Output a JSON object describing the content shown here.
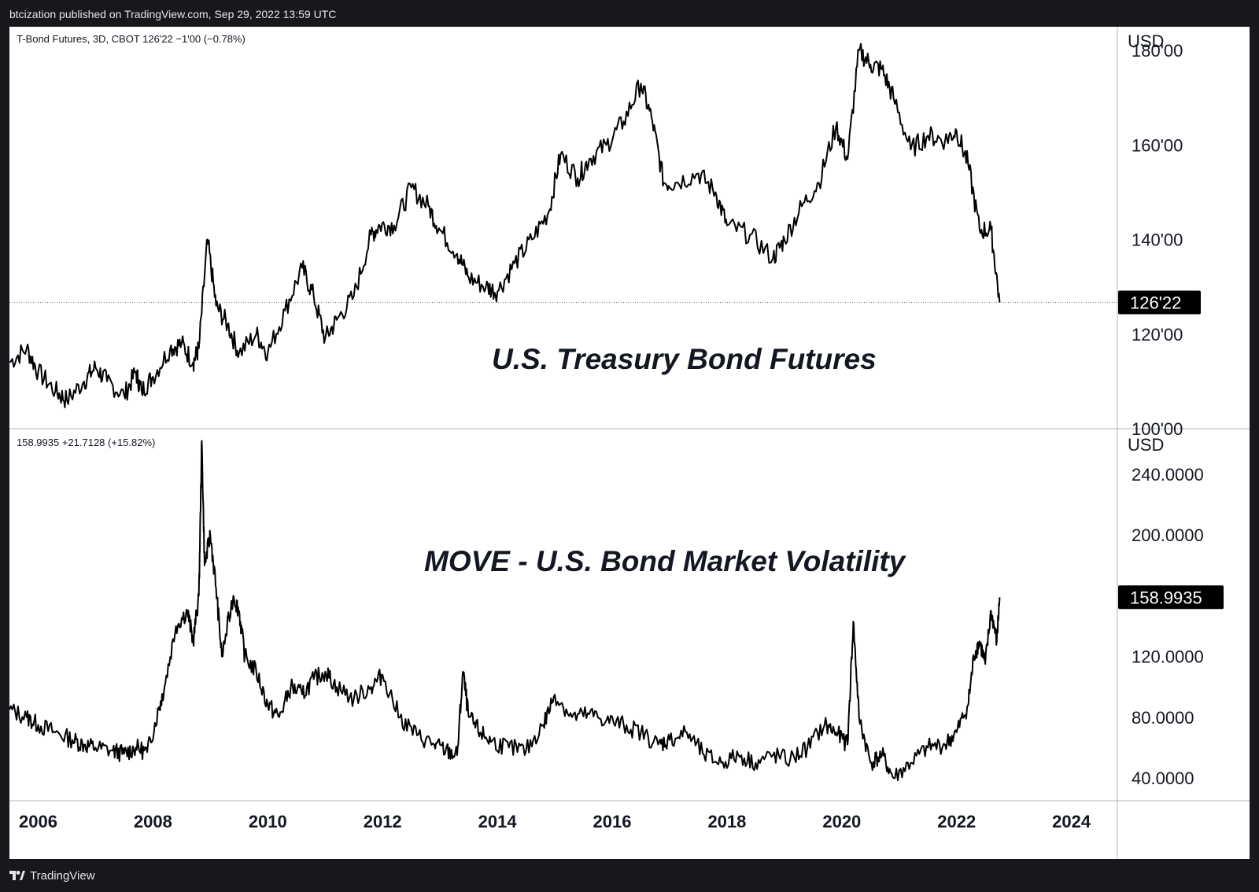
{
  "header": {
    "publisher": "btcization published on TradingView.com, Sep 29, 2022 13:59 UTC"
  },
  "footer": {
    "brand": "TradingView"
  },
  "top_pane": {
    "legend": "T-Bond Futures, 3D, CBOT  126'22  −1'00 (−0.78%)",
    "currency": "USD",
    "yticks": [
      "180'00",
      "160'00",
      "140'00",
      "120'00",
      "100'00"
    ],
    "price_badge": "126'22",
    "annotation": "U.S. Treasury Bond Futures"
  },
  "bottom_pane": {
    "legend": "158.9935  +21.7128 (+15.82%)",
    "currency": "USD",
    "yticks": [
      "240.0000",
      "200.0000",
      "120.0000",
      "80.0000",
      "40.0000"
    ],
    "price_badge": "158.9935",
    "annotation": "MOVE - U.S. Bond Market Volatility"
  },
  "time_axis": [
    "2006",
    "2008",
    "2010",
    "2012",
    "2014",
    "2016",
    "2018",
    "2020",
    "2022",
    "2024"
  ],
  "colors": {
    "line": "#000000",
    "background": "#ffffff",
    "frame": "#17181c",
    "badge": "#000000"
  },
  "chart_data": [
    {
      "type": "line",
      "title": "T-Bond Futures, 3D, CBOT",
      "ylabel": "USD",
      "ylim": [
        100,
        185
      ],
      "xlim": [
        2005.5,
        2024.8
      ],
      "last_value": 126.69,
      "x": [
        2005.5,
        2005.8,
        2006.0,
        2006.3,
        2006.5,
        2006.8,
        2007.0,
        2007.2,
        2007.5,
        2007.7,
        2007.8,
        2008.0,
        2008.3,
        2008.5,
        2008.7,
        2008.8,
        2008.95,
        2009.1,
        2009.3,
        2009.5,
        2009.8,
        2010.0,
        2010.3,
        2010.6,
        2010.8,
        2011.0,
        2011.2,
        2011.5,
        2011.8,
        2011.95,
        2012.2,
        2012.5,
        2012.8,
        2013.0,
        2013.3,
        2013.5,
        2013.8,
        2014.0,
        2014.3,
        2014.6,
        2014.9,
        2015.1,
        2015.4,
        2015.6,
        2015.9,
        2016.2,
        2016.5,
        2016.7,
        2016.9,
        2017.1,
        2017.5,
        2017.8,
        2018.0,
        2018.4,
        2018.8,
        2019.0,
        2019.3,
        2019.6,
        2019.9,
        2020.1,
        2020.3,
        2020.5,
        2020.7,
        2020.9,
        2021.2,
        2021.5,
        2021.8,
        2022.0,
        2022.2,
        2022.4,
        2022.6,
        2022.75
      ],
      "values": [
        114,
        117,
        112,
        108,
        106,
        110,
        113,
        110,
        107,
        112,
        108,
        111,
        117,
        118,
        114,
        117,
        140,
        126,
        122,
        116,
        120,
        116,
        125,
        134,
        128,
        119,
        123,
        128,
        141,
        143,
        143,
        151,
        147,
        142,
        137,
        132,
        130,
        129,
        135,
        140,
        146,
        158,
        153,
        157,
        160,
        165,
        173,
        165,
        152,
        152,
        154,
        150,
        143,
        141,
        136,
        140,
        147,
        152,
        164,
        157,
        180,
        177,
        176,
        170,
        159,
        162,
        161,
        163,
        156,
        142,
        142,
        126.7
      ]
    },
    {
      "type": "line",
      "title": "MOVE - U.S. Bond Market Volatility",
      "ylabel": "USD",
      "ylim": [
        25,
        270
      ],
      "xlim": [
        2005.5,
        2024.8
      ],
      "last_value": 158.9935,
      "x": [
        2005.5,
        2005.8,
        2006.0,
        2006.3,
        2006.6,
        2006.8,
        2007.0,
        2007.3,
        2007.5,
        2007.7,
        2007.9,
        2008.1,
        2008.2,
        2008.4,
        2008.6,
        2008.7,
        2008.8,
        2008.85,
        2008.9,
        2009.0,
        2009.1,
        2009.2,
        2009.4,
        2009.5,
        2009.6,
        2009.8,
        2010.0,
        2010.2,
        2010.4,
        2010.6,
        2010.8,
        2011.0,
        2011.2,
        2011.5,
        2011.8,
        2012.0,
        2012.3,
        2012.6,
        2012.9,
        2013.1,
        2013.3,
        2013.4,
        2013.5,
        2013.7,
        2013.9,
        2014.2,
        2014.5,
        2014.8,
        2015.0,
        2015.3,
        2015.6,
        2015.9,
        2016.2,
        2016.5,
        2016.8,
        2017.0,
        2017.3,
        2017.6,
        2017.9,
        2018.2,
        2018.5,
        2018.8,
        2019.1,
        2019.4,
        2019.7,
        2019.9,
        2020.1,
        2020.2,
        2020.3,
        2020.5,
        2020.7,
        2020.9,
        2021.2,
        2021.5,
        2021.8,
        2022.0,
        2022.2,
        2022.3,
        2022.4,
        2022.5,
        2022.6,
        2022.7,
        2022.75
      ],
      "values": [
        85,
        80,
        75,
        70,
        65,
        62,
        60,
        58,
        56,
        60,
        57,
        85,
        100,
        140,
        150,
        130,
        160,
        262,
        180,
        200,
        165,
        120,
        160,
        150,
        120,
        110,
        88,
        80,
        100,
        95,
        105,
        110,
        100,
        92,
        100,
        108,
        80,
        68,
        62,
        58,
        55,
        110,
        80,
        70,
        64,
        60,
        58,
        75,
        95,
        80,
        82,
        78,
        75,
        70,
        62,
        65,
        70,
        55,
        50,
        55,
        50,
        55,
        52,
        60,
        75,
        70,
        62,
        143,
        80,
        50,
        55,
        40,
        50,
        60,
        62,
        70,
        88,
        120,
        130,
        115,
        150,
        130,
        158.9935
      ]
    }
  ]
}
